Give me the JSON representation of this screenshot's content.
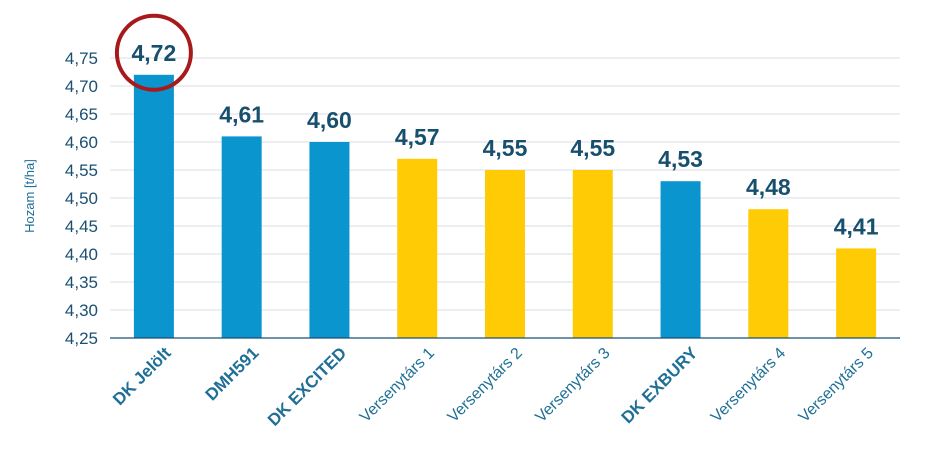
{
  "chart_data": {
    "type": "bar",
    "title": "",
    "xlabel": "",
    "ylabel": "Hozam [t/ha]",
    "ylim": [
      4.25,
      4.75
    ],
    "ytick_step": 0.05,
    "ytick_labels": [
      "4,25",
      "4,30",
      "4,35",
      "4,40",
      "4,45",
      "4,50",
      "4,55",
      "4,60",
      "4,65",
      "4,70",
      "4,75"
    ],
    "grid": true,
    "categories": [
      "DK Jelölt",
      "DMH591",
      "DK EXCITED",
      "Versenytárs 1",
      "Versenytárs 2",
      "Versenytárs 3",
      "DK EXBURY",
      "Versenytárs 4",
      "Versenytárs 5"
    ],
    "values": [
      4.72,
      4.61,
      4.6,
      4.57,
      4.55,
      4.55,
      4.53,
      4.48,
      4.41
    ],
    "value_labels": [
      "4,72",
      "4,61",
      "4,60",
      "4,57",
      "4,55",
      "4,55",
      "4,53",
      "4,48",
      "4,41"
    ],
    "bar_groups": [
      "own",
      "own",
      "own",
      "competitor",
      "competitor",
      "competitor",
      "own",
      "competitor",
      "competitor"
    ],
    "colors": {
      "own": "#0a95cf",
      "competitor": "#ffcb05",
      "highlight_circle": "#a8191c"
    },
    "highlighted_category": "DK Jelölt"
  }
}
